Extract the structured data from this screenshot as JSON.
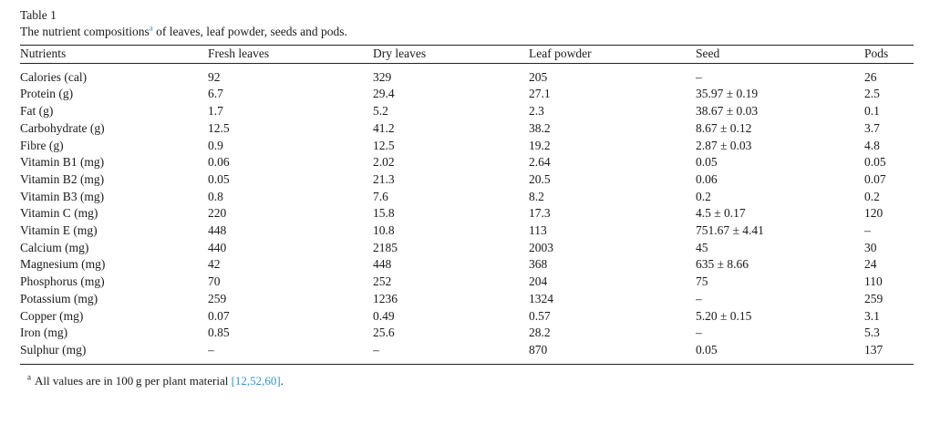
{
  "table": {
    "label": "Table 1",
    "caption": {
      "prefix": "The nutrient compositions",
      "marker": "a",
      "suffix": " of leaves, leaf powder, seeds and pods."
    },
    "columns": [
      "Nutrients",
      "Fresh leaves",
      "Dry leaves",
      "Leaf powder",
      "Seed",
      "Pods"
    ],
    "rows": [
      [
        "Calories (cal)",
        "92",
        "329",
        "205",
        "–",
        "26"
      ],
      [
        "Protein (g)",
        "6.7",
        "29.4",
        "27.1",
        "35.97 ± 0.19",
        "2.5"
      ],
      [
        "Fat (g)",
        "1.7",
        "5.2",
        "2.3",
        "38.67 ± 0.03",
        "0.1"
      ],
      [
        "Carbohydrate (g)",
        "12.5",
        "41.2",
        "38.2",
        "8.67 ± 0.12",
        "3.7"
      ],
      [
        "Fibre (g)",
        "0.9",
        "12.5",
        "19.2",
        "2.87 ± 0.03",
        "4.8"
      ],
      [
        "Vitamin B1 (mg)",
        "0.06",
        "2.02",
        "2.64",
        "0.05",
        "0.05"
      ],
      [
        "Vitamin B2 (mg)",
        "0.05",
        "21.3",
        "20.5",
        "0.06",
        "0.07"
      ],
      [
        "Vitamin B3 (mg)",
        "0.8",
        "7.6",
        "8.2",
        "0.2",
        "0.2"
      ],
      [
        "Vitamin C (mg)",
        "220",
        "15.8",
        "17.3",
        "4.5 ± 0.17",
        "120"
      ],
      [
        "Vitamin E (mg)",
        "448",
        "10.8",
        "113",
        "751.67 ± 4.41",
        "–"
      ],
      [
        "Calcium (mg)",
        "440",
        "2185",
        "2003",
        "45",
        "30"
      ],
      [
        "Magnesium (mg)",
        "42",
        "448",
        "368",
        "635 ± 8.66",
        "24"
      ],
      [
        "Phosphorus (mg)",
        "70",
        "252",
        "204",
        "75",
        "110"
      ],
      [
        "Potassium (mg)",
        "259",
        "1236",
        "1324",
        "–",
        "259"
      ],
      [
        "Copper (mg)",
        "0.07",
        "0.49",
        "0.57",
        "5.20 ± 0.15",
        "3.1"
      ],
      [
        "Iron (mg)",
        "0.85",
        "25.6",
        "28.2",
        "–",
        "5.3"
      ],
      [
        "Sulphur (mg)",
        "–",
        "–",
        "870",
        "0.05",
        "137"
      ]
    ],
    "footnote": {
      "marker": "a",
      "text": "All values are in 100 g per plant material ",
      "reference": "[12,52,60]",
      "period": "."
    },
    "colors": {
      "link_blue": "#2E96CE",
      "text": "#1a1a1a",
      "rule": "#222222"
    }
  }
}
